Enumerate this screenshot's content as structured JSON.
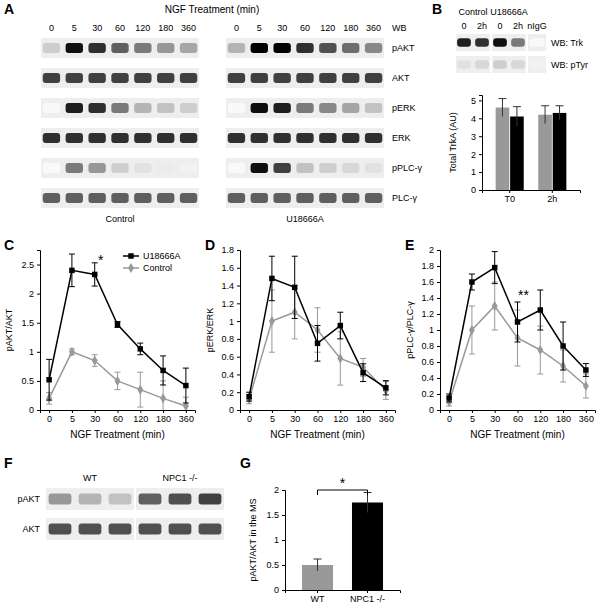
{
  "chart_data": [
    {
      "type": "bar",
      "title": "B",
      "ylabel": "Total TrkA (AU)",
      "categories": [
        "T0",
        "2h"
      ],
      "series": [
        {
          "color": "#999999",
          "values": [
            4.6,
            4.2
          ],
          "errors": [
            0.5,
            0.5
          ]
        },
        {
          "color": "#000000",
          "values": [
            4.1,
            4.3
          ],
          "errors": [
            0.55,
            0.4
          ]
        }
      ],
      "ylim": [
        0,
        5.3
      ],
      "yticks": [
        0,
        1,
        2,
        3,
        4,
        5
      ]
    },
    {
      "type": "line",
      "title": "C",
      "xlabel": "NGF Treatment (min)",
      "ylabel": "pAKT/AKT",
      "categories": [
        "0",
        "5",
        "30",
        "60",
        "120",
        "180",
        "360"
      ],
      "series": [
        {
          "name": "U18666A",
          "color": "#000000",
          "marker": "square",
          "values": [
            0.52,
            2.4,
            2.33,
            1.47,
            1.05,
            0.68,
            0.42
          ],
          "errors": [
            0.35,
            0.28,
            0.2,
            0.05,
            0.1,
            0.25,
            0.3
          ]
        },
        {
          "name": "Control",
          "color": "#999999",
          "marker": "diamond",
          "values": [
            0.2,
            1,
            0.85,
            0.5,
            0.35,
            0.2,
            0.07
          ],
          "errors": [
            0.1,
            0.05,
            0.1,
            0.15,
            0.3,
            0.3,
            0.15
          ]
        }
      ],
      "ylim": [
        0,
        2.75
      ],
      "yticks": [
        0,
        0.5,
        1,
        1.5,
        2,
        2.5
      ],
      "legend": "top-right",
      "annotations": [
        {
          "text": "*",
          "x": "30",
          "y": 2.6
        }
      ]
    },
    {
      "type": "line",
      "title": "D",
      "xlabel": "NGF Treatment (min)",
      "ylabel": "pERK/ERK",
      "categories": [
        "0",
        "5",
        "30",
        "60",
        "120",
        "180",
        "360"
      ],
      "series": [
        {
          "color": "#000000",
          "marker": "square",
          "values": [
            0.15,
            1.48,
            1.38,
            0.75,
            0.95,
            0.42,
            0.25
          ],
          "errors": [
            0.05,
            0.25,
            0.35,
            0.2,
            0.15,
            0.1,
            0.08
          ]
        },
        {
          "color": "#999999",
          "marker": "diamond",
          "values": [
            0.12,
            1,
            1.1,
            0.9,
            0.58,
            0.48,
            0.22
          ],
          "errors": [
            0.05,
            0.35,
            0.3,
            0.25,
            0.3,
            0.1,
            0.1
          ]
        }
      ],
      "ylim": [
        0,
        1.8
      ],
      "yticks": [
        0,
        0.2,
        0.4,
        0.6,
        0.8,
        1,
        1.2,
        1.4,
        1.6,
        1.8
      ]
    },
    {
      "type": "line",
      "title": "E",
      "xlabel": "NGF Treatment (min)",
      "ylabel": "pPLC-γ/PLC-γ",
      "categories": [
        "0",
        "5",
        "30",
        "60",
        "120",
        "180",
        "360"
      ],
      "series": [
        {
          "color": "#000000",
          "marker": "square",
          "values": [
            0.15,
            1.6,
            1.78,
            1.1,
            1.25,
            0.8,
            0.5
          ],
          "errors": [
            0.05,
            0.1,
            0.2,
            0.25,
            0.25,
            0.3,
            0.08
          ]
        },
        {
          "color": "#999999",
          "marker": "diamond",
          "values": [
            0.1,
            1,
            1.3,
            0.9,
            0.75,
            0.55,
            0.3
          ],
          "errors": [
            0.05,
            0.3,
            0.3,
            0.35,
            0.3,
            0.2,
            0.15
          ]
        }
      ],
      "ylim": [
        0,
        2
      ],
      "yticks": [
        0,
        0.2,
        0.4,
        0.6,
        0.8,
        1,
        1.2,
        1.4,
        1.6,
        1.8,
        2
      ],
      "annotations": [
        {
          "text": "**",
          "x": "60",
          "y": 1.45
        }
      ]
    },
    {
      "type": "bar",
      "title": "G",
      "ylabel": "pAKT/AKT in the MS",
      "categories": [
        "WT",
        "NPC1 -/-"
      ],
      "values": [
        0.5,
        1.75
      ],
      "errors": [
        0.12,
        0.2
      ],
      "colors": [
        "#999999",
        "#000000"
      ],
      "ylim": [
        0,
        2
      ],
      "yticks": [
        0,
        0.5,
        1,
        1.5,
        2
      ],
      "annotations": [
        {
          "text": "*",
          "from": "WT",
          "to": "NPC1 -/-",
          "y": 2
        }
      ]
    }
  ],
  "blots": [
    {
      "panel": "A",
      "title": "NGF Treatment (min)",
      "header": "WB",
      "rows": [
        "pAKT",
        "AKT",
        "pERK",
        "ERK",
        "pPLC-γ",
        "PLC-γ"
      ],
      "groups": [
        {
          "label": "Control",
          "lanes": [
            "0",
            "5",
            "30",
            "60",
            "120",
            "180",
            "360"
          ],
          "intensities": [
            [
              0.3,
              0.95,
              0.85,
              0.7,
              0.6,
              0.5,
              0.45
            ],
            [
              0.8,
              0.8,
              0.8,
              0.8,
              0.8,
              0.8,
              0.8
            ],
            [
              0.05,
              0.9,
              0.85,
              0.6,
              0.4,
              0.35,
              0.3
            ],
            [
              0.85,
              0.85,
              0.85,
              0.85,
              0.85,
              0.85,
              0.85
            ],
            [
              0.05,
              0.6,
              0.5,
              0.3,
              0.2,
              0.15,
              0.1
            ],
            [
              0.7,
              0.7,
              0.7,
              0.7,
              0.7,
              0.7,
              0.7
            ]
          ]
        },
        {
          "label": "U18666A",
          "lanes": [
            "0",
            "5",
            "30",
            "60",
            "120",
            "180",
            "360"
          ],
          "intensities": [
            [
              0.4,
              1,
              1,
              0.85,
              0.75,
              0.65,
              0.55
            ],
            [
              0.8,
              0.8,
              0.8,
              0.8,
              0.8,
              0.8,
              0.8
            ],
            [
              0.05,
              0.95,
              0.9,
              0.6,
              0.55,
              0.45,
              0.35
            ],
            [
              0.85,
              0.85,
              0.85,
              0.85,
              0.85,
              0.85,
              0.85
            ],
            [
              0.05,
              0.95,
              0.8,
              0.35,
              0.3,
              0.25,
              0.2
            ],
            [
              0.7,
              0.7,
              0.7,
              0.7,
              0.7,
              0.7,
              0.7
            ]
          ]
        }
      ]
    },
    {
      "rows": [
        "WB: Trk",
        "WB: pTyr"
      ],
      "groups": [
        {
          "label": "Control",
          "lanes": [
            "0",
            "2h"
          ],
          "intensities": [
            [
              0.9,
              0.85
            ],
            [
              0.2,
              0.25
            ]
          ]
        },
        {
          "label": "U18666A",
          "lanes": [
            "0",
            "2h"
          ],
          "intensities": [
            [
              0.95,
              0.6
            ],
            [
              0.3,
              0.25
            ]
          ]
        },
        {
          "lanes": [
            "nIgG"
          ],
          "intensities": [
            [
              0.05
            ],
            [
              0.1
            ]
          ]
        }
      ]
    },
    {
      "panel": "F",
      "rows": [
        "pAKT",
        "AKT"
      ],
      "groups": [
        {
          "label": "WT",
          "intensities": [
            [
              0.5,
              0.4,
              0.35
            ],
            [
              0.75,
              0.75,
              0.75
            ]
          ]
        },
        {
          "label": "NPC1 -/-",
          "intensities": [
            [
              0.7,
              0.75,
              0.8
            ],
            [
              0.75,
              0.75,
              0.75
            ]
          ]
        }
      ]
    }
  ]
}
